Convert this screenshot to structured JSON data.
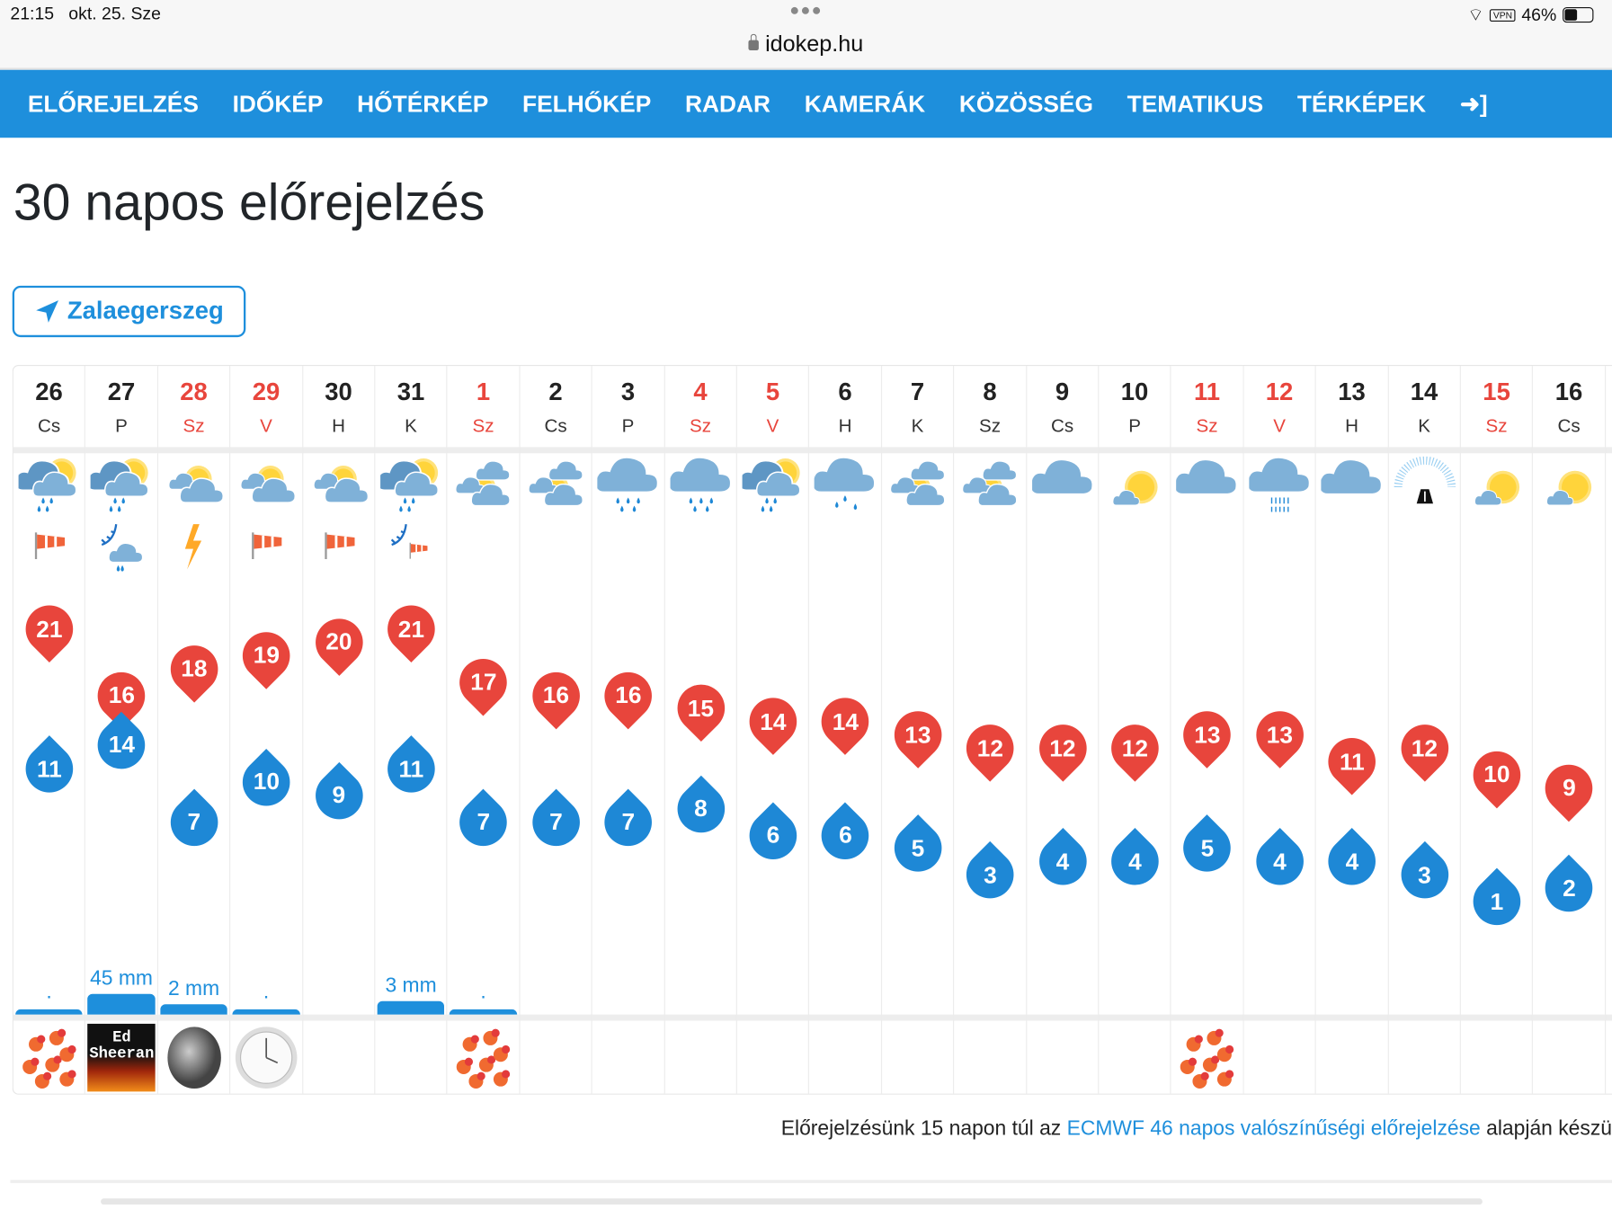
{
  "status": {
    "time": "21:15",
    "date": "okt. 25. Sze",
    "vpn": "VPN",
    "battery": "46%",
    "battery_level": 0.46
  },
  "url": "idokep.hu",
  "nav": [
    "ELŐREJELZÉS",
    "IDŐKÉP",
    "HŐTÉRKÉP",
    "FELHŐKÉP",
    "RADAR",
    "KAMERÁK",
    "KÖZÖSSÉG",
    "TEMATIKUS",
    "TÉRKÉPEK"
  ],
  "title": "30 napos előrejelzés",
  "location": "Zalaegerszeg",
  "colors": {
    "accent": "#1e8fdc",
    "max": "#e8453c",
    "min": "#1e88d6",
    "weekend": "#e8453c"
  },
  "days": [
    {
      "day": "26",
      "wd": "Cs",
      "we": false,
      "icon": "rain-partly",
      "extra": "windsock",
      "max": 21,
      "min": 11,
      "precip_label": ".",
      "precip_mm": 0.2,
      "image": "flower"
    },
    {
      "day": "27",
      "wd": "P",
      "we": false,
      "icon": "rain-partly",
      "extra": "front-snow",
      "max": 16,
      "min": 14,
      "precip_label": "45 mm",
      "precip_mm": 45,
      "image": "poster",
      "image_text": "Ed Sheeran"
    },
    {
      "day": "28",
      "wd": "Sz",
      "we": true,
      "icon": "partly",
      "extra": "lightning",
      "max": 18,
      "min": 7,
      "precip_label": "2 mm",
      "precip_mm": 2,
      "image": "moon"
    },
    {
      "day": "29",
      "wd": "V",
      "we": true,
      "icon": "partly",
      "extra": "windsock",
      "max": 19,
      "min": 10,
      "precip_label": ".",
      "precip_mm": 0.2,
      "image": "clock"
    },
    {
      "day": "30",
      "wd": "H",
      "we": false,
      "icon": "partly",
      "extra": "windsock",
      "max": 20,
      "min": 9,
      "precip_label": "",
      "precip_mm": 0,
      "image": ""
    },
    {
      "day": "31",
      "wd": "K",
      "we": false,
      "icon": "rain-partly",
      "extra": "front-windsock",
      "max": 21,
      "min": 11,
      "precip_label": "3 mm",
      "precip_mm": 3,
      "image": ""
    },
    {
      "day": "1",
      "wd": "Sz",
      "we": true,
      "icon": "mostly",
      "extra": "",
      "max": 17,
      "min": 7,
      "precip_label": ".",
      "precip_mm": 0.2,
      "image": "flower"
    },
    {
      "day": "2",
      "wd": "Cs",
      "we": false,
      "icon": "mostly",
      "extra": "",
      "max": 16,
      "min": 7,
      "precip_label": "",
      "precip_mm": 0,
      "image": ""
    },
    {
      "day": "3",
      "wd": "P",
      "we": false,
      "icon": "rain",
      "extra": "",
      "max": 16,
      "min": 7,
      "precip_label": "",
      "precip_mm": 0,
      "image": ""
    },
    {
      "day": "4",
      "wd": "Sz",
      "we": true,
      "icon": "rain",
      "extra": "",
      "max": 15,
      "min": 8,
      "precip_label": "",
      "precip_mm": 0,
      "image": ""
    },
    {
      "day": "5",
      "wd": "V",
      "we": true,
      "icon": "rain-partly",
      "extra": "",
      "max": 14,
      "min": 6,
      "precip_label": "",
      "precip_mm": 0,
      "image": ""
    },
    {
      "day": "6",
      "wd": "H",
      "we": false,
      "icon": "light-rain",
      "extra": "",
      "max": 14,
      "min": 6,
      "precip_label": "",
      "precip_mm": 0,
      "image": ""
    },
    {
      "day": "7",
      "wd": "K",
      "we": false,
      "icon": "mostly",
      "extra": "",
      "max": 13,
      "min": 5,
      "precip_label": "",
      "precip_mm": 0,
      "image": ""
    },
    {
      "day": "8",
      "wd": "Sz",
      "we": false,
      "icon": "mostly",
      "extra": "",
      "max": 12,
      "min": 3,
      "precip_label": "",
      "precip_mm": 0,
      "image": ""
    },
    {
      "day": "9",
      "wd": "Cs",
      "we": false,
      "icon": "cloud",
      "extra": "",
      "max": 12,
      "min": 4,
      "precip_label": "",
      "precip_mm": 0,
      "image": ""
    },
    {
      "day": "10",
      "wd": "P",
      "we": false,
      "icon": "sunny-cloud",
      "extra": "",
      "max": 12,
      "min": 4,
      "precip_label": "",
      "precip_mm": 0,
      "image": ""
    },
    {
      "day": "11",
      "wd": "Sz",
      "we": true,
      "icon": "cloud",
      "extra": "",
      "max": 13,
      "min": 5,
      "precip_label": "",
      "precip_mm": 0,
      "image": "flower"
    },
    {
      "day": "12",
      "wd": "V",
      "we": true,
      "icon": "drizzle",
      "extra": "",
      "max": 13,
      "min": 4,
      "precip_label": "",
      "precip_mm": 0,
      "image": ""
    },
    {
      "day": "13",
      "wd": "H",
      "we": false,
      "icon": "cloud",
      "extra": "",
      "max": 11,
      "min": 4,
      "precip_label": "",
      "precip_mm": 0,
      "image": ""
    },
    {
      "day": "14",
      "wd": "K",
      "we": false,
      "icon": "fog-road",
      "extra": "",
      "max": 12,
      "min": 3,
      "precip_label": "",
      "precip_mm": 0,
      "image": ""
    },
    {
      "day": "15",
      "wd": "Sz",
      "we": true,
      "icon": "sunny-cloud",
      "extra": "",
      "max": 10,
      "min": 1,
      "precip_label": "",
      "precip_mm": 0,
      "image": ""
    },
    {
      "day": "16",
      "wd": "Cs",
      "we": false,
      "icon": "sunny-cloud",
      "extra": "",
      "max": 9,
      "min": 2,
      "precip_label": "",
      "precip_mm": 0,
      "image": ""
    }
  ],
  "footer": {
    "before": "Előrejelzésünk 15 napon túl az ",
    "link": "ECMWF 46 napos valószínűségi előrejelzése",
    "after": " alapján készü"
  }
}
